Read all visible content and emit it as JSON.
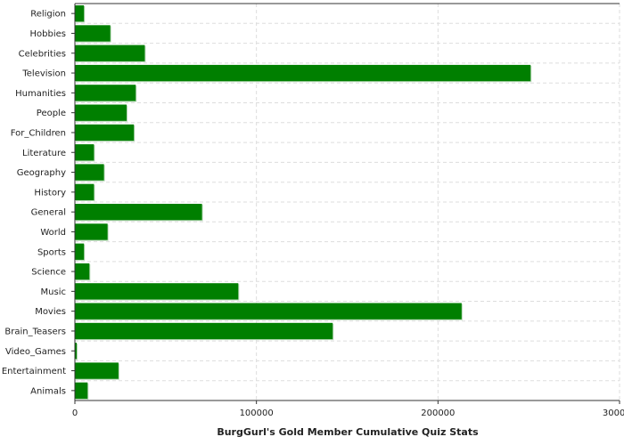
{
  "chart_data": {
    "type": "bar",
    "orientation": "horizontal",
    "xlabel": "BurgGurl's Gold Member Cumulative Quiz Stats",
    "ylabel": "",
    "xlim": [
      0,
      300000
    ],
    "x_ticks": [
      0,
      100000,
      200000,
      300000
    ],
    "x_tick_labels": [
      "0",
      "100000",
      "200000",
      "300000"
    ],
    "grid": true,
    "bar_color": "#007f00",
    "categories": [
      "Religion",
      "Hobbies",
      "Celebrities",
      "Television",
      "Humanities",
      "People",
      "For_Children",
      "Literature",
      "Geography",
      "History",
      "General",
      "World",
      "Sports",
      "Science",
      "Music",
      "Movies",
      "Brain_Teasers",
      "Video_Games",
      "Entertainment",
      "Animals"
    ],
    "values": [
      5000,
      19500,
      38500,
      251000,
      33500,
      28500,
      32500,
      10500,
      16000,
      10500,
      70000,
      18000,
      5000,
      8000,
      90000,
      213000,
      142000,
      1000,
      24000,
      7000
    ]
  }
}
